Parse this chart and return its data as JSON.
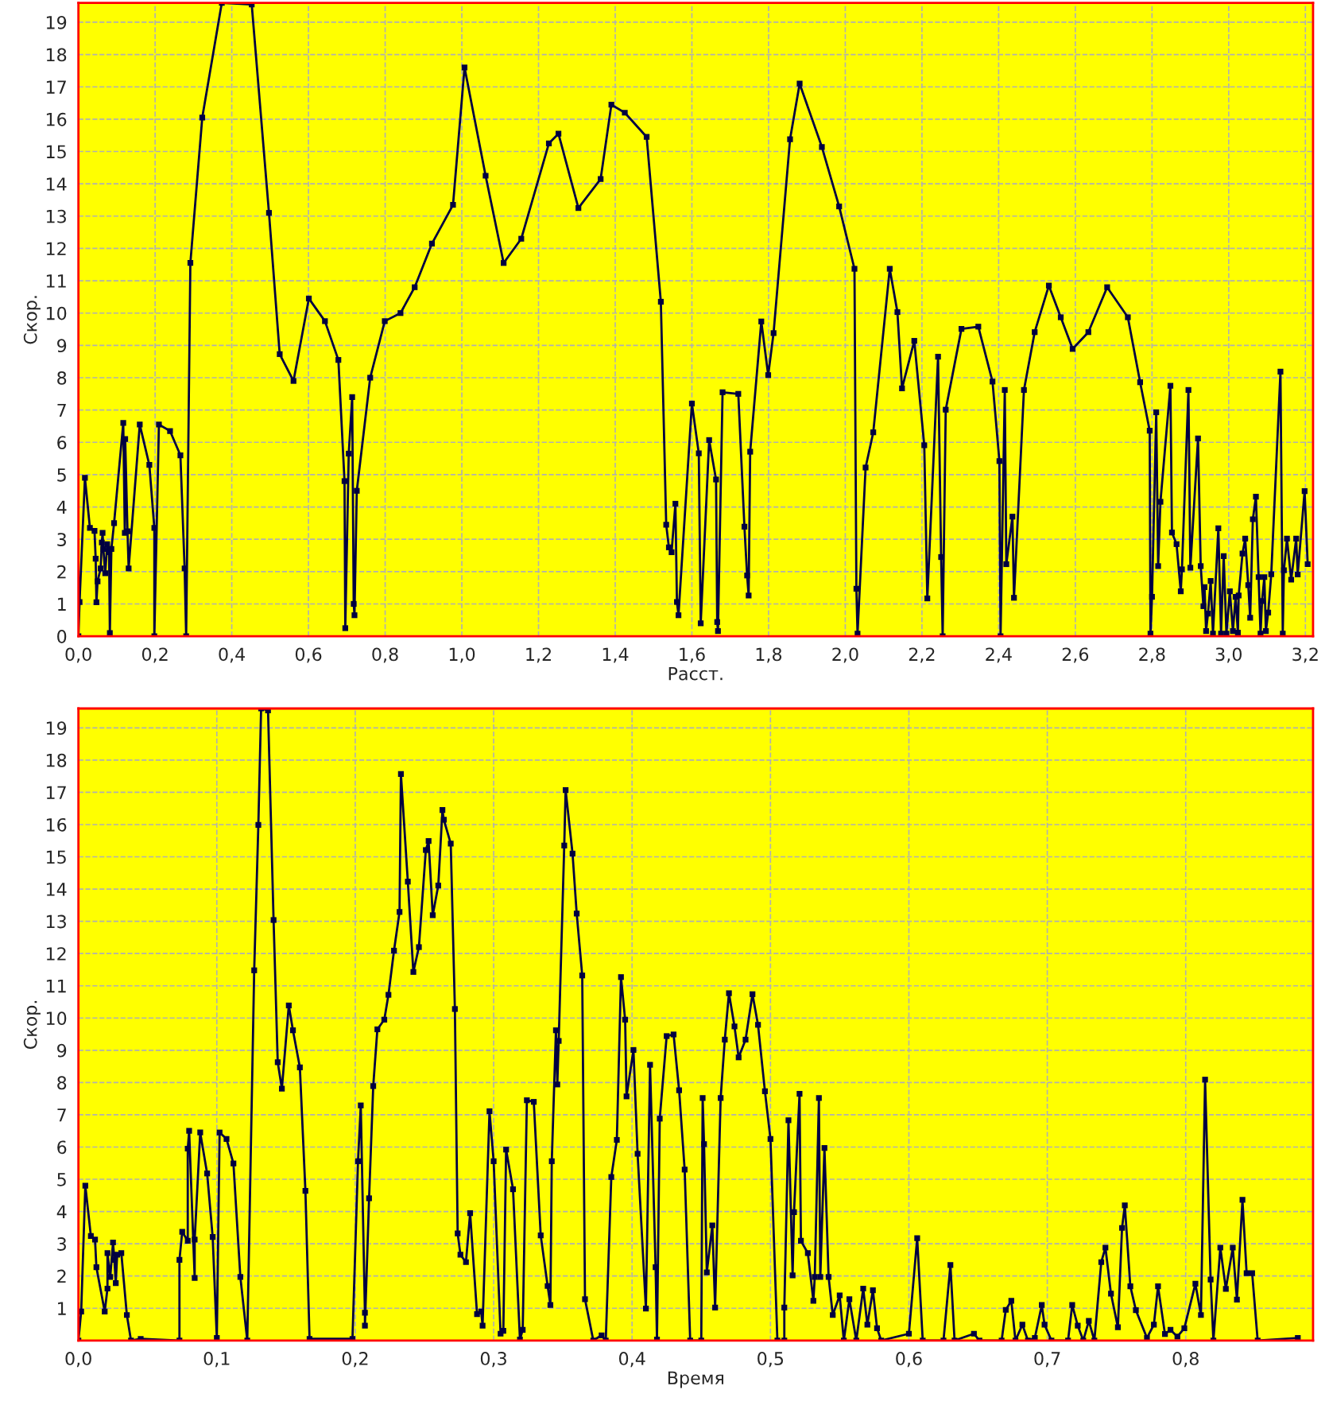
{
  "chart_data": [
    {
      "type": "line",
      "xlabel": "Расст.",
      "ylabel": "Скор.",
      "xlim": [
        0,
        3.22
      ],
      "ylim": [
        0,
        19.6
      ],
      "xticks": [
        {
          "value": 0,
          "label": "0,0"
        },
        {
          "value": 0.2,
          "label": "0,2"
        },
        {
          "value": 0.4,
          "label": "0,4"
        },
        {
          "value": 0.6,
          "label": "0,6"
        },
        {
          "value": 0.8,
          "label": "0,8"
        },
        {
          "value": 1.0,
          "label": "1,0"
        },
        {
          "value": 1.2,
          "label": "1,2"
        },
        {
          "value": 1.4,
          "label": "1,4"
        },
        {
          "value": 1.6,
          "label": "1,6"
        },
        {
          "value": 1.8,
          "label": "1,8"
        },
        {
          "value": 2.0,
          "label": "2,0"
        },
        {
          "value": 2.2,
          "label": "2,2"
        },
        {
          "value": 2.4,
          "label": "2,4"
        },
        {
          "value": 2.6,
          "label": "2,6"
        },
        {
          "value": 2.8,
          "label": "2,8"
        },
        {
          "value": 3.0,
          "label": "3,0"
        },
        {
          "value": 3.2,
          "label": "3,2"
        }
      ],
      "yticks": [
        0,
        1,
        2,
        3,
        4,
        5,
        6,
        7,
        8,
        9,
        10,
        11,
        12,
        13,
        14,
        15,
        16,
        17,
        18,
        19
      ],
      "grid": true,
      "marker": "square",
      "line_style": "solid",
      "series": [
        {
          "color": "#000040",
          "x": [
            0,
            0.003,
            0.017,
            0.03,
            0.042,
            0.045,
            0.047,
            0.05,
            0.058,
            0.061,
            0.063,
            0.065,
            0.07,
            0.075,
            0.08,
            0.082,
            0.086,
            0.093,
            0.117,
            0.121,
            0.122,
            0.128,
            0.131,
            0.16,
            0.185,
            0.198,
            0.198,
            0.21,
            0.239,
            0.266,
            0.277,
            0.281,
            0.292,
            0.323,
            0.374,
            0.452,
            0.497,
            0.525,
            0.561,
            0.601,
            0.643,
            0.678,
            0.694,
            0.696,
            0.705,
            0.714,
            0.718,
            0.72,
            0.726,
            0.761,
            0.799,
            0.84,
            0.877,
            0.922,
            0.977,
            1.007,
            1.062,
            1.109,
            1.155,
            1.227,
            1.252,
            1.304,
            1.362,
            1.39,
            1.425,
            1.482,
            1.519,
            1.533,
            1.54,
            1.547,
            1.557,
            1.561,
            1.565,
            1.6,
            1.618,
            1.623,
            1.645,
            1.663,
            1.666,
            1.668,
            1.68,
            1.721,
            1.737,
            1.744,
            1.748,
            1.752,
            1.781,
            1.799,
            1.813,
            1.856,
            1.881,
            1.939,
            1.984,
            2.024,
            2.029,
            2.032,
            2.053,
            2.073,
            2.116,
            2.136,
            2.148,
            2.18,
            2.206,
            2.214,
            2.242,
            2.25,
            2.254,
            2.262,
            2.303,
            2.347,
            2.384,
            2.402,
            2.405,
            2.416,
            2.42,
            2.436,
            2.44,
            2.466,
            2.494,
            2.531,
            2.562,
            2.593,
            2.634,
            2.683,
            2.737,
            2.769,
            2.794,
            2.796,
            2.8,
            2.811,
            2.816,
            2.822,
            2.848,
            2.852,
            2.864,
            2.875,
            2.878,
            2.895,
            2.9,
            2.92,
            2.927,
            2.934,
            2.937,
            2.941,
            2.946,
            2.953,
            2.959,
            2.973,
            2.98,
            2.987,
            2.994,
            3.003,
            3.011,
            3.018,
            3.024,
            3.026,
            3.036,
            3.043,
            3.051,
            3.056,
            3.063,
            3.071,
            3.078,
            3.083,
            3.087,
            3.093,
            3.097,
            3.103,
            3.111,
            3.135,
            3.141,
            3.144,
            3.152,
            3.163,
            3.176,
            3.18,
            3.198,
            3.206
          ],
          "values": [
            0,
            1.06,
            4.9,
            3.35,
            3.26,
            2.4,
            1.05,
            1.7,
            2.1,
            2.9,
            3.2,
            2.7,
            1.95,
            2.85,
            2.6,
            0.1,
            2.7,
            3.5,
            6.6,
            3.2,
            6.1,
            3.25,
            2.1,
            6.55,
            5.3,
            3.35,
            0,
            6.55,
            6.35,
            5.6,
            2.1,
            0,
            11.55,
            16.05,
            19.6,
            19.55,
            13.1,
            8.73,
            7.9,
            10.45,
            9.75,
            8.55,
            4.8,
            0.25,
            5.65,
            7.4,
            1.0,
            0.65,
            4.5,
            8.0,
            9.75,
            10.0,
            10.8,
            12.15,
            13.35,
            17.6,
            14.25,
            11.55,
            12.3,
            15.25,
            15.55,
            13.25,
            14.15,
            16.45,
            16.2,
            15.45,
            10.35,
            3.45,
            2.75,
            2.6,
            4.1,
            1.06,
            0.65,
            7.2,
            5.66,
            0.4,
            6.07,
            4.85,
            0.44,
            0.16,
            7.55,
            7.5,
            3.39,
            1.88,
            1.26,
            5.71,
            9.74,
            8.08,
            9.38,
            15.38,
            17.1,
            15.14,
            13.3,
            11.37,
            1.47,
            0.08,
            5.22,
            6.31,
            11.37,
            10.03,
            7.67,
            9.14,
            5.91,
            1.17,
            8.65,
            2.45,
            0,
            7.01,
            9.51,
            9.58,
            7.88,
            5.42,
            0,
            7.62,
            2.23,
            3.7,
            1.19,
            7.62,
            9.41,
            10.85,
            9.87,
            8.89,
            9.41,
            10.8,
            9.87,
            7.86,
            6.36,
            0.08,
            1.22,
            6.93,
            2.17,
            4.16,
            7.75,
            3.21,
            2.85,
            1.39,
            2.07,
            7.62,
            2.12,
            6.12,
            2.17,
            0.93,
            1.52,
            0.16,
            0.7,
            1.71,
            0.08,
            3.34,
            0.08,
            2.48,
            0.08,
            1.39,
            0.16,
            1.22,
            0.11,
            1.26,
            2.56,
            3.02,
            1.58,
            0.57,
            3.62,
            4.32,
            1.83,
            0.08,
            1.09,
            1.83,
            0.16,
            0.73,
            1.92,
            8.19,
            0.08,
            2.04,
            3.02,
            1.75,
            3.02,
            1.91,
            4.49,
            2.23
          ]
        }
      ]
    },
    {
      "type": "line",
      "xlabel": "Время",
      "ylabel": "Скор.",
      "xlim": [
        0,
        0.892
      ],
      "ylim": [
        0,
        19.6
      ],
      "xticks": [
        {
          "value": 0,
          "label": "0,0"
        },
        {
          "value": 0.1,
          "label": "0,1"
        },
        {
          "value": 0.2,
          "label": "0,2"
        },
        {
          "value": 0.3,
          "label": "0,3"
        },
        {
          "value": 0.4,
          "label": "0,4"
        },
        {
          "value": 0.5,
          "label": "0,5"
        },
        {
          "value": 0.6,
          "label": "0,6"
        },
        {
          "value": 0.7,
          "label": "0,7"
        },
        {
          "value": 0.8,
          "label": "0,8"
        }
      ],
      "yticks": [
        1,
        2,
        3,
        4,
        5,
        6,
        7,
        8,
        9,
        10,
        11,
        12,
        13,
        14,
        15,
        16,
        17,
        18,
        19
      ],
      "grid": true,
      "marker": "square",
      "line_style": "solid",
      "series": [
        {
          "color": "#000040",
          "x": [
            0,
            0.002,
            0.005,
            0.009,
            0.012,
            0.013,
            0.019,
            0.021,
            0.021,
            0.023,
            0.025,
            0.026,
            0.027,
            0.028,
            0.031,
            0.035,
            0.038,
            0.045,
            0.073,
            0.073,
            0.075,
            0.079,
            0.079,
            0.08,
            0.084,
            0.084,
            0.088,
            0.093,
            0.097,
            0.1,
            0.102,
            0.107,
            0.112,
            0.117,
            0.122,
            0.127,
            0.13,
            0.132,
            0.137,
            0.141,
            0.144,
            0.147,
            0.152,
            0.155,
            0.16,
            0.164,
            0.167,
            0.198,
            0.202,
            0.204,
            0.207,
            0.207,
            0.21,
            0.213,
            0.216,
            0.221,
            0.224,
            0.228,
            0.232,
            0.233,
            0.238,
            0.242,
            0.246,
            0.251,
            0.253,
            0.256,
            0.26,
            0.263,
            0.264,
            0.269,
            0.272,
            0.274,
            0.276,
            0.28,
            0.283,
            0.288,
            0.291,
            0.292,
            0.297,
            0.3,
            0.305,
            0.307,
            0.309,
            0.314,
            0.319,
            0.321,
            0.324,
            0.329,
            0.334,
            0.339,
            0.341,
            0.342,
            0.345,
            0.346,
            0.347,
            0.351,
            0.352,
            0.357,
            0.36,
            0.364,
            0.366,
            0.372,
            0.378,
            0.381,
            0.385,
            0.389,
            0.392,
            0.395,
            0.396,
            0.401,
            0.404,
            0.41,
            0.413,
            0.417,
            0.418,
            0.42,
            0.425,
            0.43,
            0.434,
            0.438,
            0.442,
            0.45,
            0.451,
            0.452,
            0.454,
            0.458,
            0.46,
            0.464,
            0.467,
            0.47,
            0.474,
            0.477,
            0.482,
            0.487,
            0.491,
            0.496,
            0.5,
            0.505,
            0.51,
            0.51,
            0.513,
            0.516,
            0.517,
            0.521,
            0.522,
            0.527,
            0.531,
            0.532,
            0.535,
            0.536,
            0.539,
            0.542,
            0.545,
            0.55,
            0.553,
            0.557,
            0.562,
            0.567,
            0.57,
            0.574,
            0.577,
            0.58,
            0.6,
            0.606,
            0.61,
            0.625,
            0.63,
            0.633,
            0.647,
            0.651,
            0.667,
            0.67,
            0.674,
            0.677,
            0.682,
            0.686,
            0.691,
            0.696,
            0.698,
            0.703,
            0.715,
            0.718,
            0.722,
            0.726,
            0.73,
            0.734,
            0.739,
            0.742,
            0.746,
            0.751,
            0.754,
            0.756,
            0.76,
            0.764,
            0.772,
            0.777,
            0.78,
            0.785,
            0.789,
            0.794,
            0.799,
            0.807,
            0.811,
            0.814,
            0.818,
            0.82,
            0.825,
            0.829,
            0.834,
            0.837,
            0.841,
            0.844,
            0.848,
            0.852,
            0.881
          ],
          "values": [
            0,
            0.9,
            4.8,
            3.24,
            3.13,
            2.27,
            0.9,
            1.61,
            2.71,
            1.97,
            3.04,
            2.5,
            1.78,
            2.66,
            2.71,
            0.79,
            0,
            0.05,
            0,
            2.5,
            3.37,
            3.09,
            5.95,
            6.5,
            1.94,
            3.13,
            6.45,
            5.18,
            3.21,
            0.08,
            6.45,
            6.25,
            5.49,
            1.97,
            0,
            11.48,
            15.99,
            19.6,
            19.54,
            13.04,
            8.63,
            7.81,
            10.39,
            9.62,
            8.47,
            4.64,
            0.05,
            0.05,
            5.56,
            7.29,
            0.86,
            0.46,
            4.41,
            7.89,
            9.65,
            9.95,
            10.72,
            12.09,
            13.29,
            17.57,
            14.23,
            11.43,
            12.2,
            15.21,
            15.49,
            13.19,
            14.11,
            16.45,
            16.15,
            15.41,
            10.28,
            3.32,
            2.66,
            2.43,
            3.95,
            0.82,
            0.9,
            0.46,
            7.11,
            5.56,
            0.21,
            0.3,
            5.92,
            4.69,
            0.03,
            0.33,
            7.45,
            7.4,
            3.26,
            1.69,
            1.1,
            5.56,
            9.62,
            7.94,
            9.29,
            15.35,
            17.07,
            15.1,
            13.24,
            11.32,
            1.28,
            0,
            0.16,
            0,
            5.07,
            6.22,
            11.27,
            9.95,
            7.57,
            9.01,
            5.79,
            0.99,
            8.55,
            2.27,
            0.03,
            6.88,
            9.44,
            9.49,
            7.76,
            5.3,
            0,
            0,
            7.52,
            6.09,
            2.11,
            3.57,
            1.02,
            7.52,
            9.33,
            10.77,
            9.74,
            8.78,
            9.33,
            10.74,
            9.79,
            7.73,
            6.25,
            0,
            0,
            1.02,
            6.83,
            2.02,
            3.98,
            7.65,
            3.09,
            2.71,
            1.23,
            1.97,
            7.52,
            1.97,
            5.97,
            1.97,
            0.79,
            1.4,
            0,
            1.28,
            0,
            1.61,
            0.49,
            1.56,
            0.38,
            0,
            0.21,
            3.17,
            0,
            0,
            2.34,
            0,
            0.21,
            0,
            0,
            0.95,
            1.23,
            0,
            0.49,
            0,
            0.08,
            1.1,
            0.49,
            0,
            0,
            1.1,
            0.46,
            0,
            0.61,
            0,
            2.43,
            2.88,
            1.45,
            0.41,
            3.49,
            4.19,
            1.68,
            0.94,
            0.08,
            0.49,
            1.68,
            0.2,
            0.33,
            0.12,
            0.38,
            1.76,
            0.79,
            8.09,
            1.89,
            0,
            2.88,
            1.6,
            2.88,
            1.27,
            4.36,
            2.09,
            2.09,
            0,
            0.08
          ]
        }
      ]
    }
  ]
}
